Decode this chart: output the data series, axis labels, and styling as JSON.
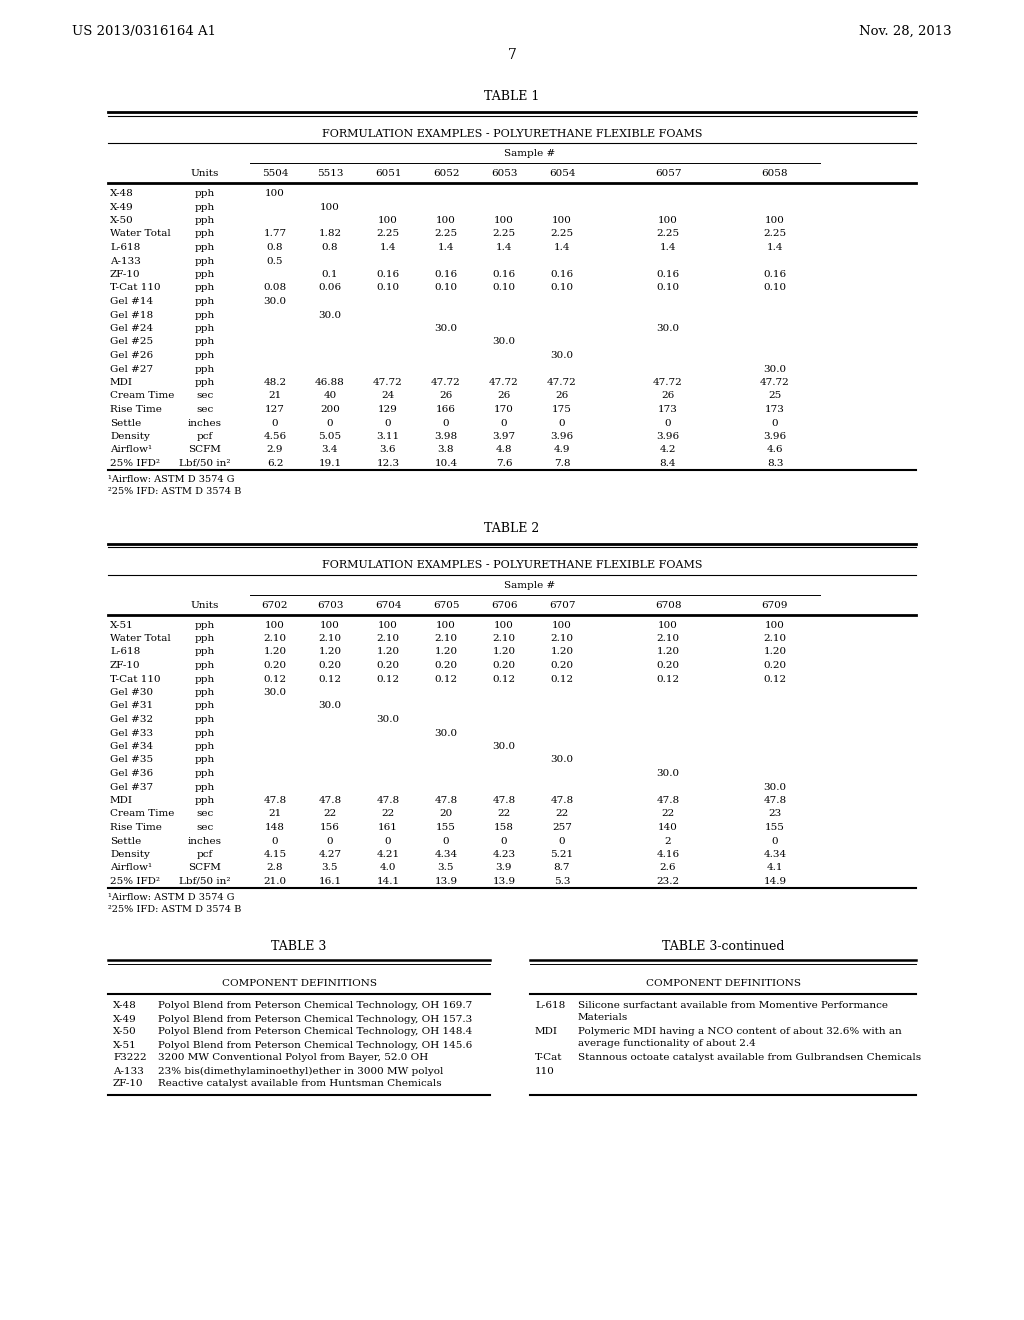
{
  "header_left": "US 2013/0316164 A1",
  "header_right": "Nov. 28, 2013",
  "page_number": "7",
  "table1_title": "TABLE 1",
  "table1_subtitle": "FORMULATION EXAMPLES - POLYURETHANE FLEXIBLE FOAMS",
  "table1_sample_label": "Sample #",
  "table1_rows": [
    [
      "X-48",
      "pph",
      "100",
      "",
      "",
      "",
      "",
      "",
      "",
      ""
    ],
    [
      "X-49",
      "pph",
      "",
      "100",
      "",
      "",
      "",
      "",
      "",
      ""
    ],
    [
      "X-50",
      "pph",
      "",
      "",
      "100",
      "100",
      "100",
      "100",
      "100",
      "100"
    ],
    [
      "Water Total",
      "pph",
      "1.77",
      "1.82",
      "2.25",
      "2.25",
      "2.25",
      "2.25",
      "2.25",
      "2.25"
    ],
    [
      "L-618",
      "pph",
      "0.8",
      "0.8",
      "1.4",
      "1.4",
      "1.4",
      "1.4",
      "1.4",
      "1.4"
    ],
    [
      "A-133",
      "pph",
      "0.5",
      "",
      "",
      "",
      "",
      "",
      "",
      ""
    ],
    [
      "ZF-10",
      "pph",
      "",
      "0.1",
      "0.16",
      "0.16",
      "0.16",
      "0.16",
      "0.16",
      "0.16"
    ],
    [
      "T-Cat 110",
      "pph",
      "0.08",
      "0.06",
      "0.10",
      "0.10",
      "0.10",
      "0.10",
      "0.10",
      "0.10"
    ],
    [
      "Gel #14",
      "pph",
      "30.0",
      "",
      "",
      "",
      "",
      "",
      "",
      ""
    ],
    [
      "Gel #18",
      "pph",
      "",
      "30.0",
      "",
      "",
      "",
      "",
      "",
      ""
    ],
    [
      "Gel #24",
      "pph",
      "",
      "",
      "",
      "30.0",
      "",
      "",
      "30.0",
      ""
    ],
    [
      "Gel #25",
      "pph",
      "",
      "",
      "",
      "",
      "30.0",
      "",
      "",
      ""
    ],
    [
      "Gel #26",
      "pph",
      "",
      "",
      "",
      "",
      "",
      "30.0",
      "",
      ""
    ],
    [
      "Gel #27",
      "pph",
      "",
      "",
      "",
      "",
      "",
      "",
      "",
      "30.0"
    ],
    [
      "MDI",
      "pph",
      "48.2",
      "46.88",
      "47.72",
      "47.72",
      "47.72",
      "47.72",
      "47.72",
      "47.72"
    ],
    [
      "Cream Time",
      "sec",
      "21",
      "40",
      "24",
      "26",
      "26",
      "26",
      "26",
      "25"
    ],
    [
      "Rise Time",
      "sec",
      "127",
      "200",
      "129",
      "166",
      "170",
      "175",
      "173",
      "173"
    ],
    [
      "Settle",
      "inches",
      "0",
      "0",
      "0",
      "0",
      "0",
      "0",
      "0",
      "0"
    ],
    [
      "Density",
      "pcf",
      "4.56",
      "5.05",
      "3.11",
      "3.98",
      "3.97",
      "3.96",
      "3.96",
      "3.96"
    ],
    [
      "Airflow¹",
      "SCFM",
      "2.9",
      "3.4",
      "3.6",
      "3.8",
      "4.8",
      "4.9",
      "4.2",
      "4.6"
    ],
    [
      "25% IFD²",
      "Lbf/50 in²",
      "6.2",
      "19.1",
      "12.3",
      "10.4",
      "7.6",
      "7.8",
      "8.4",
      "8.3"
    ]
  ],
  "table1_col_headers": [
    "Units",
    "5504",
    "5513",
    "6051",
    "6052",
    "6053",
    "6054",
    "6057",
    "6058"
  ],
  "table1_footnotes": [
    "¹Airflow: ASTM D 3574 G",
    "²25% IFD: ASTM D 3574 B"
  ],
  "table2_title": "TABLE 2",
  "table2_subtitle": "FORMULATION EXAMPLES - POLYURETHANE FLEXIBLE FOAMS",
  "table2_sample_label": "Sample #",
  "table2_col_headers": [
    "Units",
    "6702",
    "6703",
    "6704",
    "6705",
    "6706",
    "6707",
    "6708",
    "6709"
  ],
  "table2_rows": [
    [
      "X-51",
      "pph",
      "100",
      "100",
      "100",
      "100",
      "100",
      "100",
      "100",
      "100"
    ],
    [
      "Water Total",
      "pph",
      "2.10",
      "2.10",
      "2.10",
      "2.10",
      "2.10",
      "2.10",
      "2.10",
      "2.10"
    ],
    [
      "L-618",
      "pph",
      "1.20",
      "1.20",
      "1.20",
      "1.20",
      "1.20",
      "1.20",
      "1.20",
      "1.20"
    ],
    [
      "ZF-10",
      "pph",
      "0.20",
      "0.20",
      "0.20",
      "0.20",
      "0.20",
      "0.20",
      "0.20",
      "0.20"
    ],
    [
      "T-Cat 110",
      "pph",
      "0.12",
      "0.12",
      "0.12",
      "0.12",
      "0.12",
      "0.12",
      "0.12",
      "0.12"
    ],
    [
      "Gel #30",
      "pph",
      "30.0",
      "",
      "",
      "",
      "",
      "",
      "",
      ""
    ],
    [
      "Gel #31",
      "pph",
      "",
      "30.0",
      "",
      "",
      "",
      "",
      "",
      ""
    ],
    [
      "Gel #32",
      "pph",
      "",
      "",
      "30.0",
      "",
      "",
      "",
      "",
      ""
    ],
    [
      "Gel #33",
      "pph",
      "",
      "",
      "",
      "30.0",
      "",
      "",
      "",
      ""
    ],
    [
      "Gel #34",
      "pph",
      "",
      "",
      "",
      "",
      "30.0",
      "",
      "",
      ""
    ],
    [
      "Gel #35",
      "pph",
      "",
      "",
      "",
      "",
      "",
      "30.0",
      "",
      ""
    ],
    [
      "Gel #36",
      "pph",
      "",
      "",
      "",
      "",
      "",
      "",
      "30.0",
      ""
    ],
    [
      "Gel #37",
      "pph",
      "",
      "",
      "",
      "",
      "",
      "",
      "",
      "30.0"
    ],
    [
      "MDI",
      "pph",
      "47.8",
      "47.8",
      "47.8",
      "47.8",
      "47.8",
      "47.8",
      "47.8",
      "47.8"
    ],
    [
      "Cream Time",
      "sec",
      "21",
      "22",
      "22",
      "20",
      "22",
      "22",
      "22",
      "23"
    ],
    [
      "Rise Time",
      "sec",
      "148",
      "156",
      "161",
      "155",
      "158",
      "257",
      "140",
      "155"
    ],
    [
      "Settle",
      "inches",
      "0",
      "0",
      "0",
      "0",
      "0",
      "0",
      "2",
      "0"
    ],
    [
      "Density",
      "pcf",
      "4.15",
      "4.27",
      "4.21",
      "4.34",
      "4.23",
      "5.21",
      "4.16",
      "4.34"
    ],
    [
      "Airflow¹",
      "SCFM",
      "2.8",
      "3.5",
      "4.0",
      "3.5",
      "3.9",
      "8.7",
      "2.6",
      "4.1"
    ],
    [
      "25% IFD²",
      "Lbf/50 in²",
      "21.0",
      "16.1",
      "14.1",
      "13.9",
      "13.9",
      "5.3",
      "23.2",
      "14.9"
    ]
  ],
  "table2_footnotes": [
    "¹Airflow: ASTM D 3574 G",
    "²25% IFD: ASTM D 3574 B"
  ],
  "table3_left_title": "TABLE 3",
  "table3_right_title": "TABLE 3-continued",
  "table3_left_header": "COMPONENT DEFINITIONS",
  "table3_right_header": "COMPONENT DEFINITIONS",
  "table3_left_rows": [
    [
      "X-48",
      "Polyol Blend from Peterson Chemical Technology, OH 169.7"
    ],
    [
      "X-49",
      "Polyol Blend from Peterson Chemical Technology, OH 157.3"
    ],
    [
      "X-50",
      "Polyol Blend from Peterson Chemical Technology, OH 148.4"
    ],
    [
      "X-51",
      "Polyol Blend from Peterson Chemical Technology, OH 145.6"
    ],
    [
      "F3222",
      "3200 MW Conventional Polyol from Bayer, 52.0 OH"
    ],
    [
      "A-133",
      "23% bis(dimethylaminoethyl)ether in 3000 MW polyol"
    ],
    [
      "ZF-10",
      "Reactive catalyst available from Huntsman Chemicals"
    ]
  ],
  "table3_right_rows": [
    [
      "L-618",
      [
        "Silicone surfactant available from Momentive Performance",
        "Materials"
      ]
    ],
    [
      "MDI",
      [
        "Polymeric MDI having a NCO content of about 32.6% with an",
        "average functionality of about 2.4"
      ]
    ],
    [
      "T-Cat",
      [
        "Stannous octoate catalyst available from Gulbrandsen Chemicals"
      ]
    ],
    [
      "110",
      [
        ""
      ]
    ]
  ]
}
